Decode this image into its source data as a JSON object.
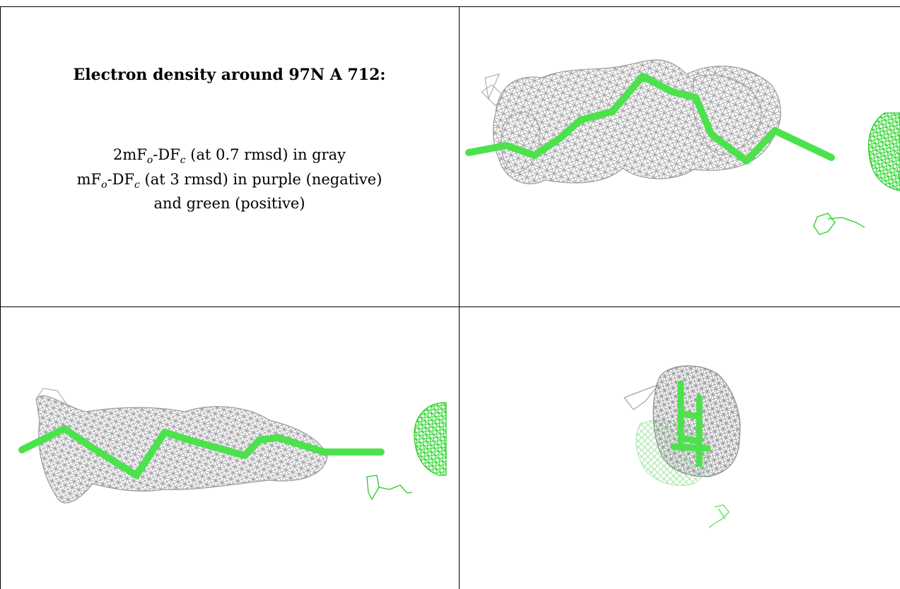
{
  "caption": {
    "title": "Electron density around 97N A 712:",
    "line1": {
      "prefix": "2mF",
      "sub1": "o",
      "mid": "-DF",
      "sub2": "c",
      "suffix": " (at 0.7 rmsd) in gray"
    },
    "line2": {
      "prefix": "mF",
      "sub1": "o",
      "mid": "-DF",
      "sub2": "c",
      "suffix": " (at 3 rmsd) in purple (negative)"
    },
    "line3": "and green (positive)"
  },
  "colors": {
    "mesh_2fofc": "#a0a0a4",
    "mesh_positive": "#22dd22",
    "mesh_negative": "#9b59b6",
    "stick_model": "#4ce24c",
    "grid_lines": "#000000"
  },
  "panels": [
    {
      "name": "view-front"
    },
    {
      "name": "view-side"
    },
    {
      "name": "view-end"
    }
  ]
}
